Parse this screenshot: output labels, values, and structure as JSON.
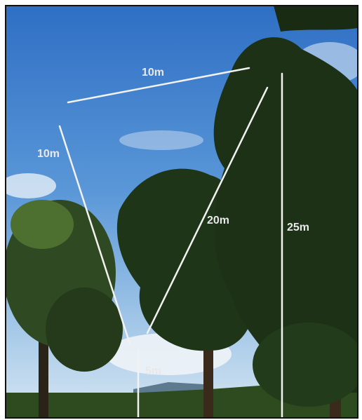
{
  "annotations": [
    {
      "label": "10m"
    },
    {
      "label": "10m"
    },
    {
      "label": "20m"
    },
    {
      "label": "25m"
    },
    {
      "label": "5m"
    }
  ]
}
